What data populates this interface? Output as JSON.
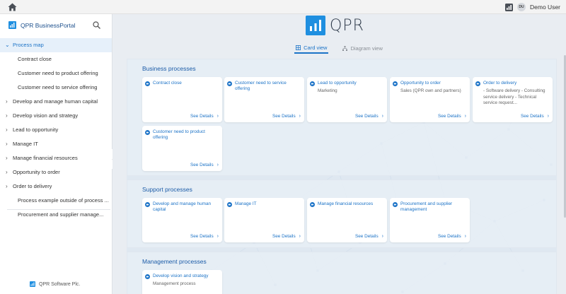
{
  "topbar": {
    "home_icon": "home-icon",
    "chart_icon": "bar-chart-icon",
    "avatar_initials": "DU",
    "user_name": "Demo User"
  },
  "sidebar": {
    "brand": "QPR BusinessPortal",
    "search_icon": "search-icon",
    "root": "Process map",
    "items": [
      {
        "label": "Contract close",
        "type": "child"
      },
      {
        "label": "Customer need to product offering",
        "type": "child"
      },
      {
        "label": "Customer need to service offering",
        "type": "child"
      },
      {
        "label": "Develop and manage human capital",
        "type": "group"
      },
      {
        "label": "Develop vision and strategy",
        "type": "group"
      },
      {
        "label": "Lead to opportunity",
        "type": "group"
      },
      {
        "label": "Manage IT",
        "type": "group"
      },
      {
        "label": "Manage financial resources",
        "type": "group"
      },
      {
        "label": "Opportunity to order",
        "type": "group"
      },
      {
        "label": "Order to delivery",
        "type": "group"
      },
      {
        "label": "Process example outside of process ...",
        "type": "child"
      },
      {
        "label": "Procurement and supplier manage...",
        "type": "child"
      }
    ],
    "footer": "QPR Software Plc."
  },
  "main": {
    "logo_text": "QPR",
    "tabs": [
      {
        "label": "Card view",
        "active": true
      },
      {
        "label": "Diagram view",
        "active": false
      }
    ],
    "see_details": "See Details",
    "sections": [
      {
        "title": "Business processes",
        "cards": [
          {
            "title": "Contract close",
            "desc": ""
          },
          {
            "title": "Customer need to service offering",
            "desc": ""
          },
          {
            "title": "Lead to opportunity",
            "desc": "Marketing"
          },
          {
            "title": "Opportunity to order",
            "desc": "Sales (QPR own and partners)"
          },
          {
            "title": "Order to delivery",
            "desc": "- Software delivery - Consulting service delivery - Technical service request..."
          },
          {
            "title": "Customer need to product offering",
            "desc": ""
          }
        ]
      },
      {
        "title": "Support processes",
        "cards": [
          {
            "title": "Develop and manage human capital",
            "desc": ""
          },
          {
            "title": "Manage IT",
            "desc": ""
          },
          {
            "title": "Manage financial resources",
            "desc": ""
          },
          {
            "title": "Procurement and supplier management",
            "desc": ""
          }
        ]
      },
      {
        "title": "Management processes",
        "cards": [
          {
            "title": "Develop vision and strategy",
            "desc": "Management process"
          }
        ]
      }
    ]
  },
  "colors": {
    "accent": "#1c73c7",
    "brand_blue": "#1f8fe0",
    "section_title": "#1c5ca8"
  }
}
